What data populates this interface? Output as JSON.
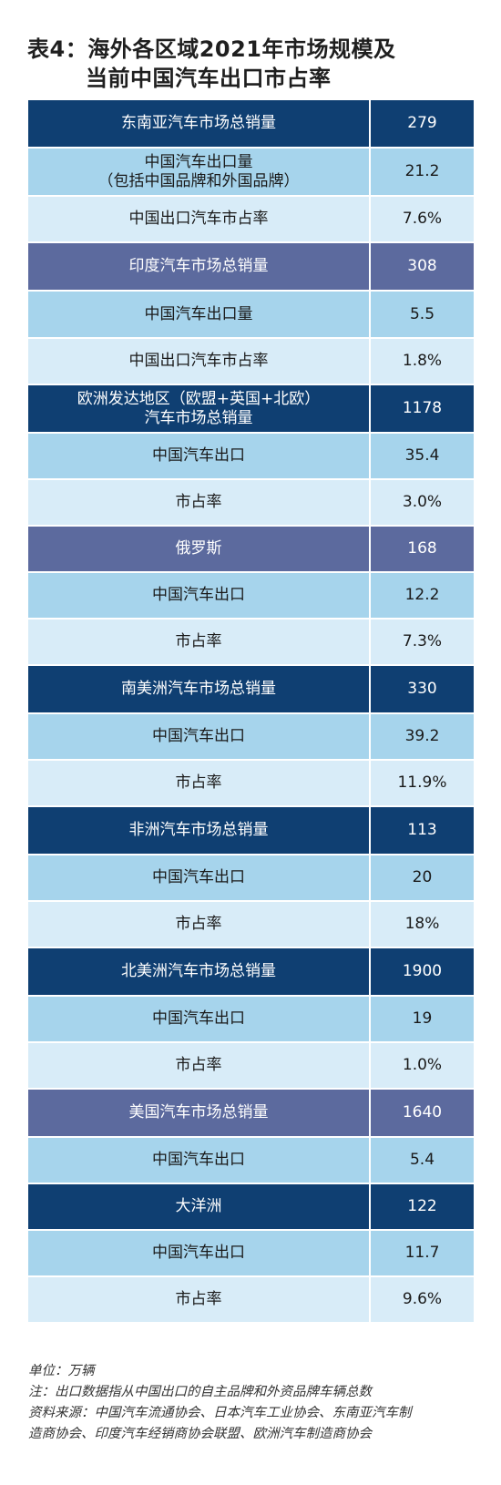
{
  "title": {
    "line1": "表4：海外各区域2021年市场规模及",
    "line2": "当前中国汽车出口市占率"
  },
  "rows": [
    {
      "label": "东南亚汽车市场总销量",
      "value": "279",
      "tone": "navy"
    },
    {
      "label": "中国汽车出口量",
      "label2": "（包括中国品牌和外国品牌）",
      "value": "21.2",
      "tone": "mid"
    },
    {
      "label": "中国出口汽车市占率",
      "value": "7.6%",
      "tone": "light"
    },
    {
      "label": "印度汽车市场总销量",
      "value": "308",
      "tone": "slate"
    },
    {
      "label": "中国汽车出口量",
      "value": "5.5",
      "tone": "mid"
    },
    {
      "label": "中国出口汽车市占率",
      "value": "1.8%",
      "tone": "light"
    },
    {
      "label": "欧洲发达地区（欧盟+英国+北欧）",
      "label2": "汽车市场总销量",
      "value": "1178",
      "tone": "navy"
    },
    {
      "label": "中国汽车出口",
      "value": "35.4",
      "tone": "mid"
    },
    {
      "label": "市占率",
      "value": "3.0%",
      "tone": "light"
    },
    {
      "label": "俄罗斯",
      "value": "168",
      "tone": "slate"
    },
    {
      "label": "中国汽车出口",
      "value": "12.2",
      "tone": "mid"
    },
    {
      "label": "市占率",
      "value": "7.3%",
      "tone": "light"
    },
    {
      "label": "南美洲汽车市场总销量",
      "value": "330",
      "tone": "navy"
    },
    {
      "label": "中国汽车出口",
      "value": "39.2",
      "tone": "mid"
    },
    {
      "label": "市占率",
      "value": "11.9%",
      "tone": "light"
    },
    {
      "label": "非洲汽车市场总销量",
      "value": "113",
      "tone": "navy"
    },
    {
      "label": "中国汽车出口",
      "value": "20",
      "tone": "mid"
    },
    {
      "label": "市占率",
      "value": "18%",
      "tone": "light"
    },
    {
      "label": "北美洲汽车市场总销量",
      "value": "1900",
      "tone": "navy"
    },
    {
      "label": "中国汽车出口",
      "value": "19",
      "tone": "mid"
    },
    {
      "label": "市占率",
      "value": "1.0%",
      "tone": "light"
    },
    {
      "label": "美国汽车市场总销量",
      "value": "1640",
      "tone": "slate"
    },
    {
      "label": "中国汽车出口",
      "value": "5.4",
      "tone": "mid"
    },
    {
      "label": "大洋洲",
      "value": "122",
      "tone": "navy"
    },
    {
      "label": "中国汽车出口",
      "value": "11.7",
      "tone": "mid"
    },
    {
      "label": "市占率",
      "value": "9.6%",
      "tone": "light"
    }
  ],
  "notes": {
    "unit": "单位：万辆",
    "note": "注：出口数据指从中国出口的自主品牌和外资品牌车辆总数",
    "source1": "资料来源：中国汽车流通协会、日本汽车工业协会、东南亚汽车制",
    "source2": "造商协会、印度汽车经销商协会联盟、欧洲汽车制造商协会"
  },
  "colors": {
    "navy": "#0f3f72",
    "slate": "#5c6a9e",
    "mid": "#a6d4ec",
    "light": "#d8ecf8"
  }
}
